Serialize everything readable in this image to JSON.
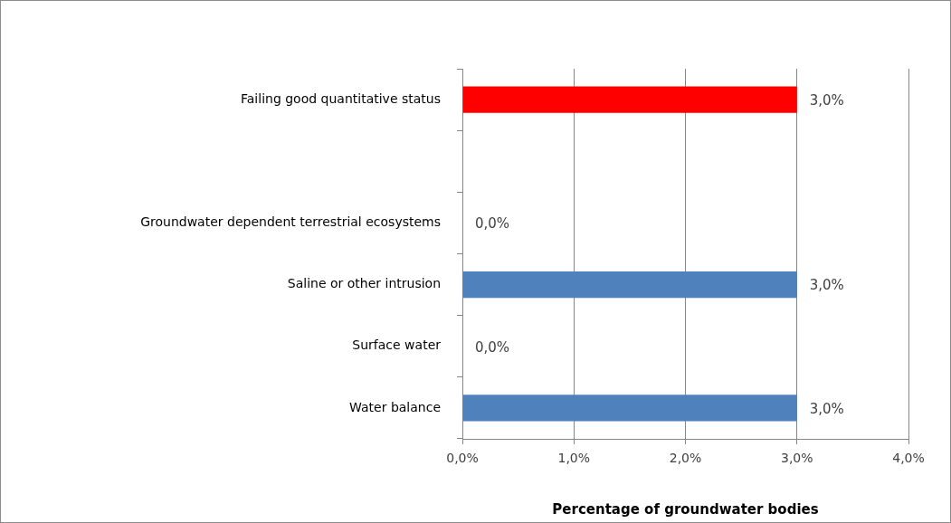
{
  "chart_data": {
    "type": "bar",
    "orientation": "horizontal",
    "xlabel": "Percentage of groundwater bodies",
    "categories": [
      "Failing good quantitative status",
      null,
      "Groundwater dependent terrestrial ecosystems",
      "Saline or other intrusion",
      "Surface water",
      "Water balance"
    ],
    "values": [
      3.0,
      null,
      0.0,
      3.0,
      0.0,
      3.0
    ],
    "colors": [
      "#ff0000",
      null,
      "#4f81bd",
      "#4f81bd",
      "#4f81bd",
      "#4f81bd"
    ],
    "value_labels": [
      "3,0%",
      null,
      "0,0%",
      "3,0%",
      "0,0%",
      "3,0%"
    ],
    "xlim": [
      0,
      4
    ],
    "xticks": [
      {
        "value": 0,
        "label": "0,0%"
      },
      {
        "value": 1,
        "label": "1,0%"
      },
      {
        "value": 2,
        "label": "2,0%"
      },
      {
        "value": 3,
        "label": "3,0%"
      },
      {
        "value": 4,
        "label": "4,0%"
      }
    ],
    "grid": "x",
    "legend": false
  }
}
